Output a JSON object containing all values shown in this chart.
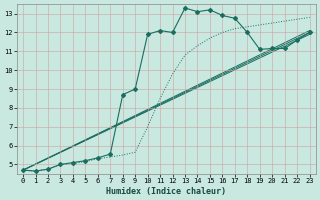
{
  "xlabel": "Humidex (Indice chaleur)",
  "xlim": [
    -0.5,
    23.5
  ],
  "ylim": [
    4.5,
    13.5
  ],
  "xticks": [
    0,
    1,
    2,
    3,
    4,
    5,
    6,
    7,
    8,
    9,
    10,
    11,
    12,
    13,
    14,
    15,
    16,
    17,
    18,
    19,
    20,
    21,
    22,
    23
  ],
  "yticks": [
    5,
    6,
    7,
    8,
    9,
    10,
    11,
    12,
    13
  ],
  "bg_color": "#c8e8e0",
  "grid_color": "#b0c8c0",
  "line_color": "#1a6e60",
  "curve1": {
    "x": [
      0,
      1,
      2,
      3,
      4,
      5,
      6,
      7,
      8,
      9,
      10,
      11,
      12,
      13,
      14,
      15,
      16,
      17,
      18,
      19,
      20,
      21,
      22,
      23
    ],
    "y": [
      4.7,
      4.65,
      4.75,
      5.0,
      5.1,
      5.2,
      5.35,
      5.55,
      8.7,
      9.0,
      11.9,
      12.1,
      12.0,
      13.3,
      13.1,
      13.2,
      12.9,
      12.75,
      12.0,
      11.1,
      11.15,
      11.15,
      11.6,
      12.0
    ]
  },
  "line1": {
    "x": [
      0,
      23
    ],
    "y": [
      4.7,
      11.9
    ]
  },
  "line2": {
    "x": [
      0,
      23
    ],
    "y": [
      4.7,
      12.1
    ]
  },
  "line3": {
    "x": [
      0,
      23
    ],
    "y": [
      4.7,
      12.0
    ]
  },
  "diag_dotted": {
    "x": [
      0,
      1,
      2,
      3,
      4,
      5,
      6,
      7,
      8,
      9,
      10,
      11,
      12,
      13,
      14,
      15,
      16,
      17,
      18,
      19,
      20,
      21,
      22,
      23
    ],
    "y": [
      4.7,
      4.65,
      4.75,
      5.0,
      5.05,
      5.15,
      5.3,
      5.4,
      5.5,
      5.65,
      7.0,
      8.5,
      9.8,
      10.8,
      11.3,
      11.7,
      12.0,
      12.2,
      12.3,
      12.4,
      12.5,
      12.6,
      12.7,
      12.8
    ]
  }
}
